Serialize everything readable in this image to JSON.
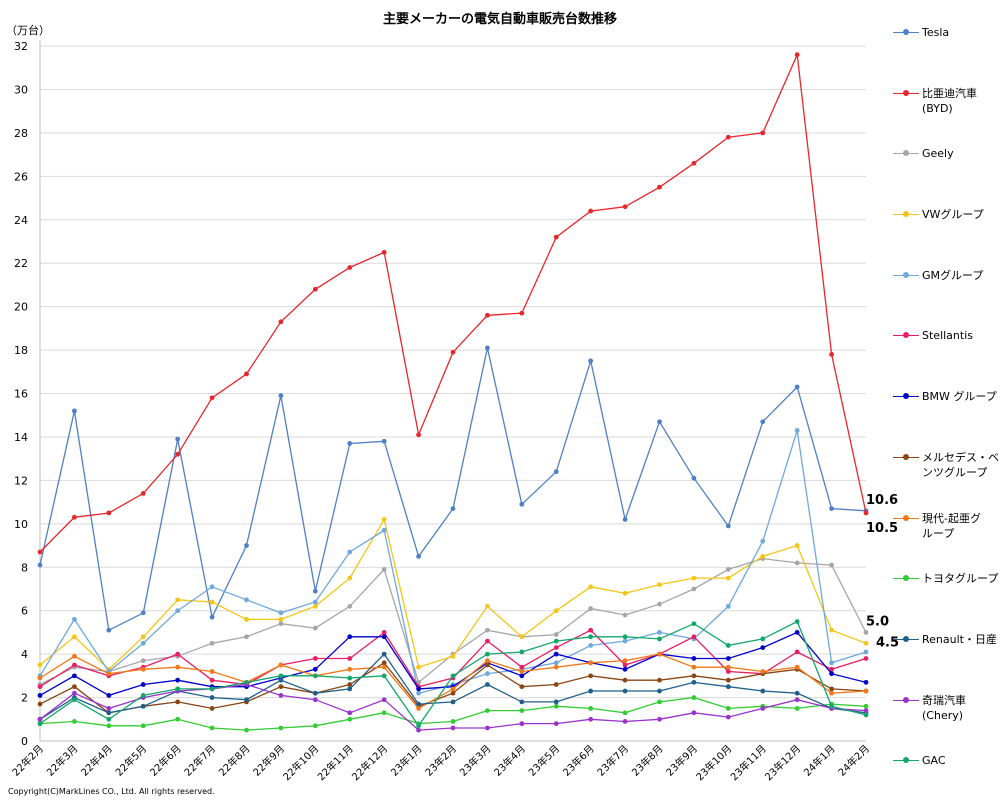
{
  "chart_data": {
    "type": "line",
    "title": "主要メーカーの電気自動車販売台数推移",
    "ylabel": "（万台）",
    "ylim": [
      0,
      32
    ],
    "yticks": [
      0,
      2,
      4,
      6,
      8,
      10,
      12,
      14,
      16,
      18,
      20,
      22,
      24,
      26,
      28,
      30,
      32
    ],
    "grid": true,
    "legend": "right",
    "categories": [
      "22年2月",
      "22年3月",
      "22年4月",
      "22年5月",
      "22年6月",
      "22年7月",
      "22年8月",
      "22年9月",
      "22年10月",
      "22年11月",
      "22年12月",
      "23年1月",
      "23年2月",
      "23年3月",
      "23年4月",
      "23年5月",
      "23年6月",
      "23年7月",
      "23年8月",
      "23年9月",
      "23年10月",
      "23年11月",
      "23年12月",
      "24年1月",
      "24年2月"
    ],
    "series": [
      {
        "name": "Tesla",
        "color": "#4f7fc6",
        "values": [
          8.1,
          15.2,
          5.1,
          5.9,
          13.9,
          5.7,
          9.0,
          15.9,
          6.9,
          13.7,
          13.8,
          8.5,
          10.7,
          18.1,
          10.9,
          12.4,
          17.5,
          10.2,
          14.7,
          12.1,
          9.9,
          14.7,
          16.3,
          10.7,
          10.6
        ]
      },
      {
        "name": "比亜迪汽車\n(BYD)",
        "color": "#e8262b",
        "values": [
          8.7,
          10.3,
          10.5,
          11.4,
          13.2,
          15.8,
          16.9,
          19.3,
          20.8,
          21.8,
          22.5,
          14.1,
          17.9,
          19.6,
          19.7,
          23.2,
          24.4,
          24.6,
          25.5,
          26.6,
          27.8,
          28.0,
          31.6,
          17.8,
          10.5
        ]
      },
      {
        "name": "Geely",
        "color": "#a6a6a6",
        "values": [
          2.6,
          3.4,
          3.2,
          3.7,
          3.9,
          4.5,
          4.8,
          5.4,
          5.2,
          6.2,
          7.9,
          2.7,
          4.0,
          5.1,
          4.8,
          4.9,
          6.1,
          5.8,
          6.3,
          7.0,
          7.9,
          8.4,
          8.2,
          8.1,
          5.0
        ]
      },
      {
        "name": "VWグループ",
        "color": "#f5c518",
        "values": [
          3.5,
          4.8,
          3.3,
          4.8,
          6.5,
          6.4,
          5.6,
          5.6,
          6.2,
          7.5,
          10.2,
          3.4,
          3.9,
          6.2,
          4.8,
          6.0,
          7.1,
          6.8,
          7.2,
          7.5,
          7.5,
          8.5,
          9.0,
          5.1,
          4.5
        ]
      },
      {
        "name": "GMグループ",
        "color": "#6fa8dc",
        "values": [
          3.0,
          5.6,
          3.2,
          4.5,
          6.0,
          7.1,
          6.5,
          5.9,
          6.4,
          8.7,
          9.7,
          2.2,
          2.6,
          3.1,
          3.3,
          3.6,
          4.4,
          4.6,
          5.0,
          4.7,
          6.2,
          9.2,
          14.3,
          3.6,
          4.1
        ]
      },
      {
        "name": "Stellantis",
        "color": "#e91e63",
        "values": [
          2.5,
          3.5,
          3.0,
          3.4,
          4.0,
          2.8,
          2.6,
          3.5,
          3.8,
          3.8,
          5.0,
          2.5,
          2.9,
          4.6,
          3.4,
          4.3,
          5.1,
          3.5,
          4.0,
          4.8,
          3.2,
          3.1,
          4.1,
          3.3,
          3.8
        ]
      },
      {
        "name": "BMW グループ",
        "color": "#0000cc",
        "values": [
          2.1,
          3.0,
          2.1,
          2.6,
          2.8,
          2.5,
          2.5,
          2.9,
          3.3,
          4.8,
          4.8,
          2.4,
          2.5,
          3.6,
          3.0,
          4.0,
          3.6,
          3.3,
          4.0,
          3.8,
          3.8,
          4.3,
          5.0,
          3.1,
          2.7
        ]
      },
      {
        "name": "メルセデス・ベ\nンツグループ",
        "color": "#8b4513",
        "values": [
          1.7,
          2.5,
          1.3,
          1.6,
          1.8,
          1.5,
          1.8,
          2.5,
          2.2,
          2.6,
          3.6,
          1.6,
          2.2,
          3.5,
          2.5,
          2.6,
          3.0,
          2.8,
          2.8,
          3.0,
          2.8,
          3.1,
          3.3,
          2.4,
          2.3
        ]
      },
      {
        "name": "現代-起亜グ\nループ",
        "color": "#f07a1a",
        "values": [
          2.9,
          3.9,
          3.1,
          3.3,
          3.4,
          3.2,
          2.7,
          3.5,
          3.0,
          3.3,
          3.4,
          1.5,
          2.4,
          3.7,
          3.2,
          3.4,
          3.6,
          3.7,
          4.0,
          3.4,
          3.4,
          3.2,
          3.4,
          2.2,
          2.3
        ]
      },
      {
        "name": "トヨタグループ",
        "color": "#33cc33",
        "values": [
          0.8,
          0.9,
          0.7,
          0.7,
          1.0,
          0.6,
          0.5,
          0.6,
          0.7,
          1.0,
          1.3,
          0.8,
          0.9,
          1.4,
          1.4,
          1.6,
          1.5,
          1.3,
          1.8,
          2.0,
          1.5,
          1.6,
          1.5,
          1.7,
          1.6
        ]
      },
      {
        "name": "Renault・日産",
        "color": "#1f5f8b",
        "values": [
          1.0,
          2.0,
          1.3,
          1.6,
          2.3,
          2.0,
          1.9,
          2.8,
          2.2,
          2.4,
          4.0,
          1.7,
          1.8,
          2.6,
          1.8,
          1.8,
          2.3,
          2.3,
          2.3,
          2.7,
          2.5,
          2.3,
          2.2,
          1.5,
          1.3
        ]
      },
      {
        "name": "奇瑞汽車\n(Chery)",
        "color": "#9933cc",
        "values": [
          1.0,
          2.2,
          1.5,
          2.0,
          2.3,
          2.4,
          2.6,
          2.1,
          1.9,
          1.3,
          1.9,
          0.5,
          0.6,
          0.6,
          0.8,
          0.8,
          1.0,
          0.9,
          1.0,
          1.3,
          1.1,
          1.5,
          1.9,
          1.5,
          1.4
        ]
      },
      {
        "name": "GAC",
        "color": "#13a86a",
        "values": [
          0.8,
          1.9,
          1.0,
          2.1,
          2.4,
          2.4,
          2.7,
          3.0,
          3.0,
          2.9,
          3.0,
          0.7,
          3.0,
          4.0,
          4.1,
          4.6,
          4.8,
          4.8,
          4.7,
          5.4,
          4.4,
          4.7,
          5.5,
          1.6,
          1.2
        ]
      }
    ],
    "annotations": [
      {
        "text": "10.6",
        "series": "Tesla",
        "index": 24
      },
      {
        "text": "10.5",
        "series": "比亜迪汽車\n(BYD)",
        "index": 24
      },
      {
        "text": "5.0",
        "series": "Geely",
        "index": 24
      },
      {
        "text": "4.5",
        "series": "VWグループ",
        "index": 24
      }
    ]
  },
  "copyright": "Copyright(C)MarkLines CO., Ltd. All rights reserved."
}
